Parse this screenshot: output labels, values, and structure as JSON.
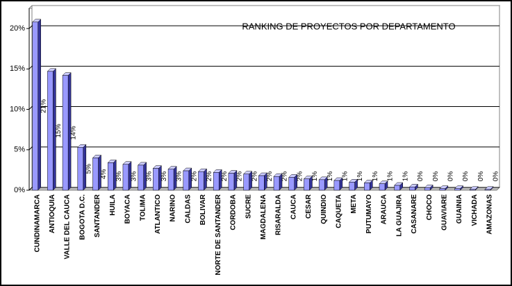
{
  "chart_data": {
    "type": "bar3d",
    "title": "RANKING DE PROYECTOS POR DEPARTAMENTO",
    "categories": [
      "CUNDINAMARCA",
      "ANTIOQUIA",
      "VALLE DEL CAUCA",
      "BOGOTA D.C.",
      "SANTANDER",
      "HUILA",
      "BOYACA",
      "TOLIMA",
      "ATLANTICO",
      "NARINO",
      "CALDAS",
      "BOLIVAR",
      "NORTE DE SANTANDER",
      "CORDOBA",
      "SUCRE",
      "MAGDALENA",
      "RISARALDA",
      "CAUCA",
      "CESAR",
      "QUINDIO",
      "CAQUETA",
      "META",
      "PUTUMAYO",
      "ARAUCA",
      "LA GUAJIRA",
      "CASANARE",
      "CHOCO",
      "GUAVIARE",
      "GUAINIA",
      "VICHADA",
      "AMAZONAS"
    ],
    "values": [
      20.8,
      14.7,
      14.2,
      5.3,
      4.0,
      3.4,
      3.2,
      3.1,
      2.7,
      2.6,
      2.4,
      2.3,
      2.2,
      2.1,
      2.0,
      1.8,
      1.7,
      1.6,
      1.4,
      1.3,
      1.2,
      1.0,
      0.9,
      0.8,
      0.6,
      0.4,
      0.3,
      0.2,
      0.2,
      0.1,
      0.1
    ],
    "value_labels": [
      "21%",
      "15%",
      "14%",
      "5%",
      "4%",
      "3%",
      "3%",
      "3%",
      "3%",
      "3%",
      "2%",
      "2%",
      "2%",
      "2%",
      "2%",
      "2%",
      "2%",
      "2%",
      "1%",
      "1%",
      "1%",
      "1%",
      "1%",
      "1%",
      "1%",
      "0%",
      "0%",
      "0%",
      "0%",
      "0%",
      "0%"
    ],
    "color": "#9999ff",
    "ylim": [
      0,
      22.5
    ],
    "yticks": [
      {
        "value": 0,
        "label": "0%"
      },
      {
        "value": 5,
        "label": "5%"
      },
      {
        "value": 10,
        "label": "10%"
      },
      {
        "value": 15,
        "label": "15%"
      },
      {
        "value": 20,
        "label": "20%"
      }
    ],
    "grid": true
  }
}
